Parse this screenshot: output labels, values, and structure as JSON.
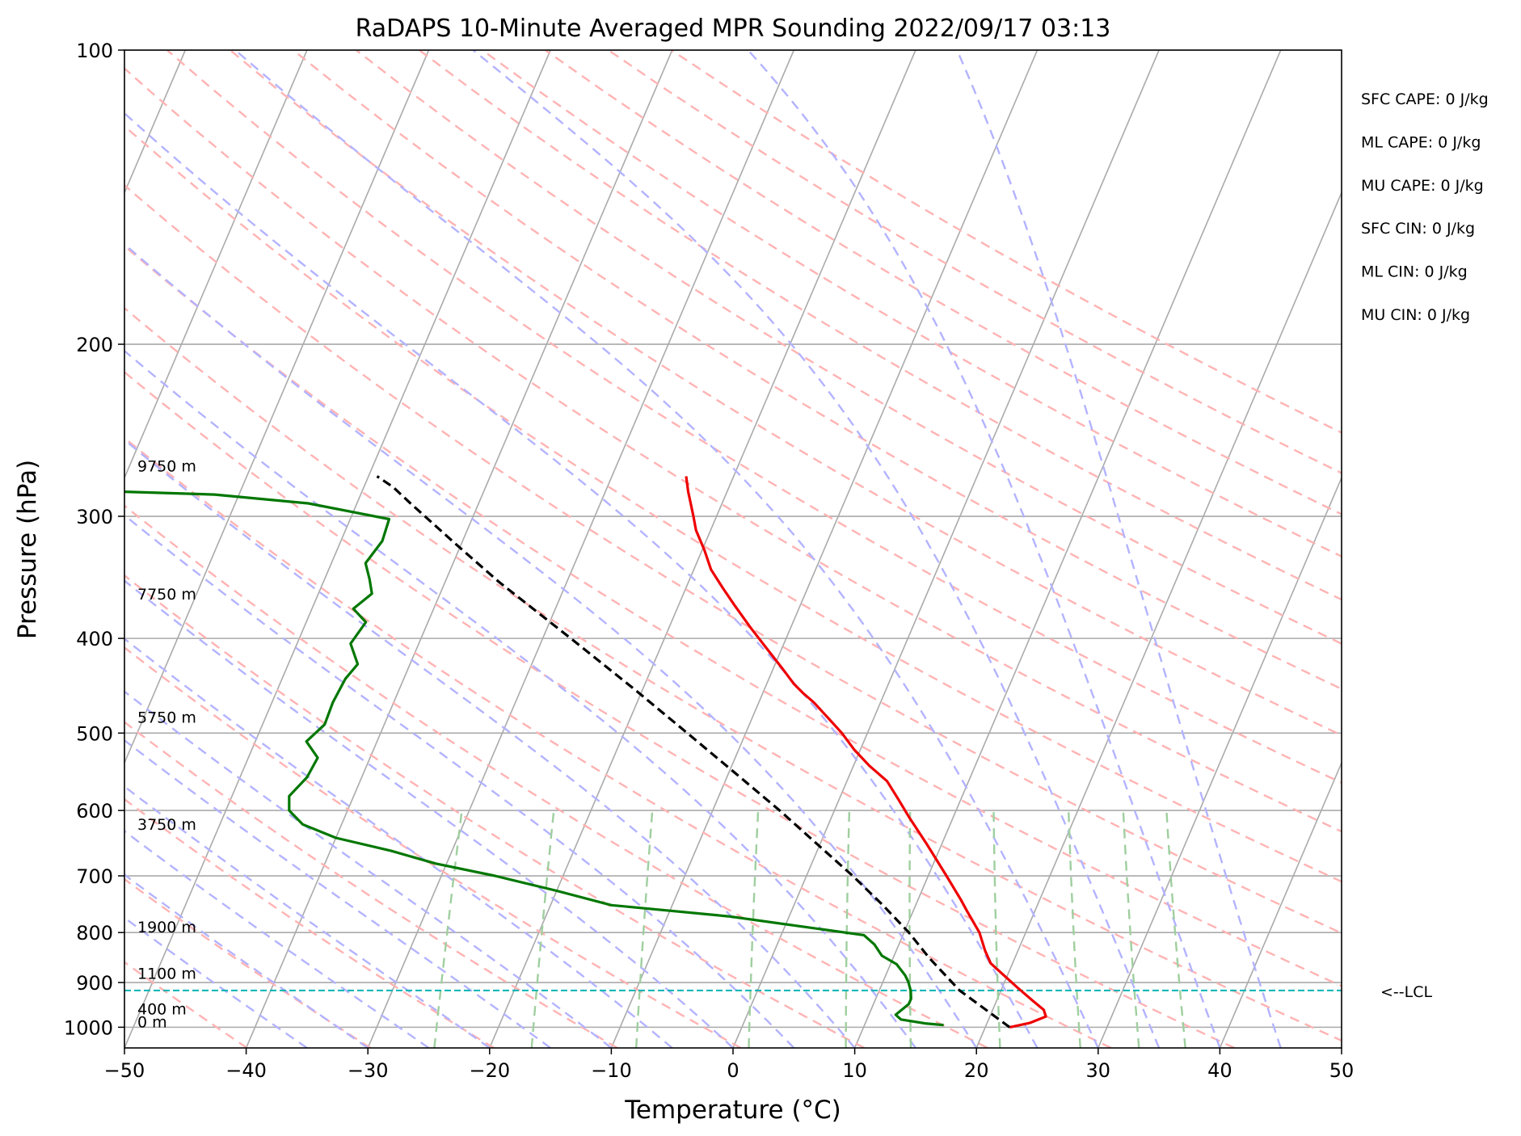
{
  "chart_data": {
    "type": "line",
    "title": "RaDAPS 10-Minute Averaged MPR Sounding 2022/09/17 03:13",
    "xlabel": "Temperature (°C)",
    "ylabel": "Pressure (hPa)",
    "xlim": [
      -50,
      50
    ],
    "ylim": [
      1050,
      100
    ],
    "y_scale": "log",
    "skew_t": true,
    "grid": true,
    "x_ticks": [
      -50,
      -40,
      -30,
      -20,
      -10,
      0,
      10,
      20,
      30,
      40,
      50
    ],
    "x_tick_labels": [
      "−50",
      "−40",
      "−30",
      "−20",
      "−10",
      "0",
      "10",
      "20",
      "30",
      "40",
      "50"
    ],
    "y_ticks": [
      100,
      200,
      300,
      400,
      500,
      600,
      700,
      800,
      900,
      1000
    ],
    "y_tick_labels": [
      "100",
      "200",
      "300",
      "400",
      "500",
      "600",
      "700",
      "800",
      "900",
      "1000"
    ],
    "colors": {
      "temperature": "#ee0000",
      "dewpoint": "#007700",
      "parcel": "#000000",
      "isotherm": "#aaaaaa",
      "dry_adiabat": "#ffb3b3",
      "moist_adiabat": "#b3b3ff",
      "mixing_ratio": "#9fcf9f",
      "lcl": "#00b3b3"
    },
    "series": [
      {
        "key": "temperature",
        "points": [
          [
            22.0,
            1000
          ],
          [
            23.5,
            990
          ],
          [
            24.6,
            975
          ],
          [
            24.2,
            960
          ],
          [
            23.0,
            940
          ],
          [
            21.2,
            910
          ],
          [
            18.8,
            870
          ],
          [
            18.2,
            860
          ],
          [
            17.3,
            835
          ],
          [
            16.2,
            800
          ],
          [
            14.4,
            760
          ],
          [
            13.5,
            740
          ],
          [
            11.5,
            700
          ],
          [
            8.8,
            650
          ],
          [
            6.4,
            610
          ],
          [
            4.9,
            585
          ],
          [
            3.3,
            560
          ],
          [
            1.3,
            540
          ],
          [
            -0.5,
            520
          ],
          [
            -2.1,
            500
          ],
          [
            -4.0,
            480
          ],
          [
            -5.5,
            465
          ],
          [
            -6.7,
            455
          ],
          [
            -7.8,
            445
          ],
          [
            -9.2,
            430
          ],
          [
            -11.2,
            410
          ],
          [
            -13.3,
            390
          ],
          [
            -15.4,
            370
          ],
          [
            -17.0,
            355
          ],
          [
            -18.6,
            340
          ],
          [
            -19.8,
            325
          ],
          [
            -21.2,
            310
          ],
          [
            -21.9,
            300
          ],
          [
            -22.5,
            292
          ],
          [
            -23.2,
            283
          ],
          [
            -23.9,
            273
          ]
        ]
      },
      {
        "key": "dewpoint",
        "points": [
          [
            16.5,
            995
          ],
          [
            14.9,
            991
          ],
          [
            12.8,
            982
          ],
          [
            12.2,
            971
          ],
          [
            12.9,
            947
          ],
          [
            12.9,
            935
          ],
          [
            12.6,
            918
          ],
          [
            12.1,
            899
          ],
          [
            11.6,
            885
          ],
          [
            10.5,
            862
          ],
          [
            9.0,
            845
          ],
          [
            8.0,
            823
          ],
          [
            6.8,
            805
          ],
          [
            -5.0,
            770
          ],
          [
            -15.0,
            750
          ],
          [
            -20.0,
            725
          ],
          [
            -25.6,
            700
          ],
          [
            -30.9,
            680
          ],
          [
            -35.0,
            660
          ],
          [
            -40.0,
            640
          ],
          [
            -43.2,
            620
          ],
          [
            -44.8,
            600
          ],
          [
            -45.3,
            580
          ],
          [
            -44.5,
            555
          ],
          [
            -44.3,
            530
          ],
          [
            -45.8,
            510
          ],
          [
            -44.9,
            490
          ],
          [
            -45.0,
            465
          ],
          [
            -44.8,
            440
          ],
          [
            -44.3,
            425
          ],
          [
            -45.6,
            405
          ],
          [
            -45.1,
            385
          ],
          [
            -46.6,
            373
          ],
          [
            -45.6,
            360
          ],
          [
            -46.3,
            348
          ],
          [
            -47.2,
            335
          ],
          [
            -46.6,
            318
          ],
          [
            -46.8,
            302
          ],
          [
            -54.0,
            291
          ],
          [
            -62.0,
            285
          ],
          [
            -70.0,
            283
          ]
        ]
      },
      {
        "key": "parcel",
        "points": [
          [
            22.0,
            1000
          ],
          [
            16.6,
            917
          ],
          [
            13.0,
            850
          ],
          [
            10.4,
            800
          ],
          [
            7.3,
            750
          ],
          [
            3.8,
            700
          ],
          [
            -0.2,
            650
          ],
          [
            -4.5,
            600
          ],
          [
            -9.4,
            550
          ],
          [
            -14.8,
            500
          ],
          [
            -20.8,
            450
          ],
          [
            -27.7,
            400
          ],
          [
            -35.6,
            350
          ],
          [
            -40.5,
            320
          ],
          [
            -45.6,
            291
          ],
          [
            -47.6,
            280
          ],
          [
            -49.3,
            273
          ]
        ]
      }
    ],
    "lcl": {
      "pressure": 917,
      "label": "<--LCL"
    },
    "height_labels": [
      {
        "text": "9750 m",
        "pressure": 270
      },
      {
        "text": "7750 m",
        "pressure": 365
      },
      {
        "text": "5750 m",
        "pressure": 488
      },
      {
        "text": "3750 m",
        "pressure": 628
      },
      {
        "text": "1900 m",
        "pressure": 800
      },
      {
        "text": "1100 m",
        "pressure": 892
      },
      {
        "text": "400 m",
        "pressure": 970
      },
      {
        "text": "0 m",
        "pressure": 1000
      }
    ],
    "indices": [
      "SFC CAPE: 0 J/kg",
      "ML CAPE: 0 J/kg",
      "MU CAPE: 0 J/kg",
      "SFC CIN: 0 J/kg",
      "ML CIN: 0 J/kg",
      "MU CIN: 0 J/kg"
    ]
  }
}
